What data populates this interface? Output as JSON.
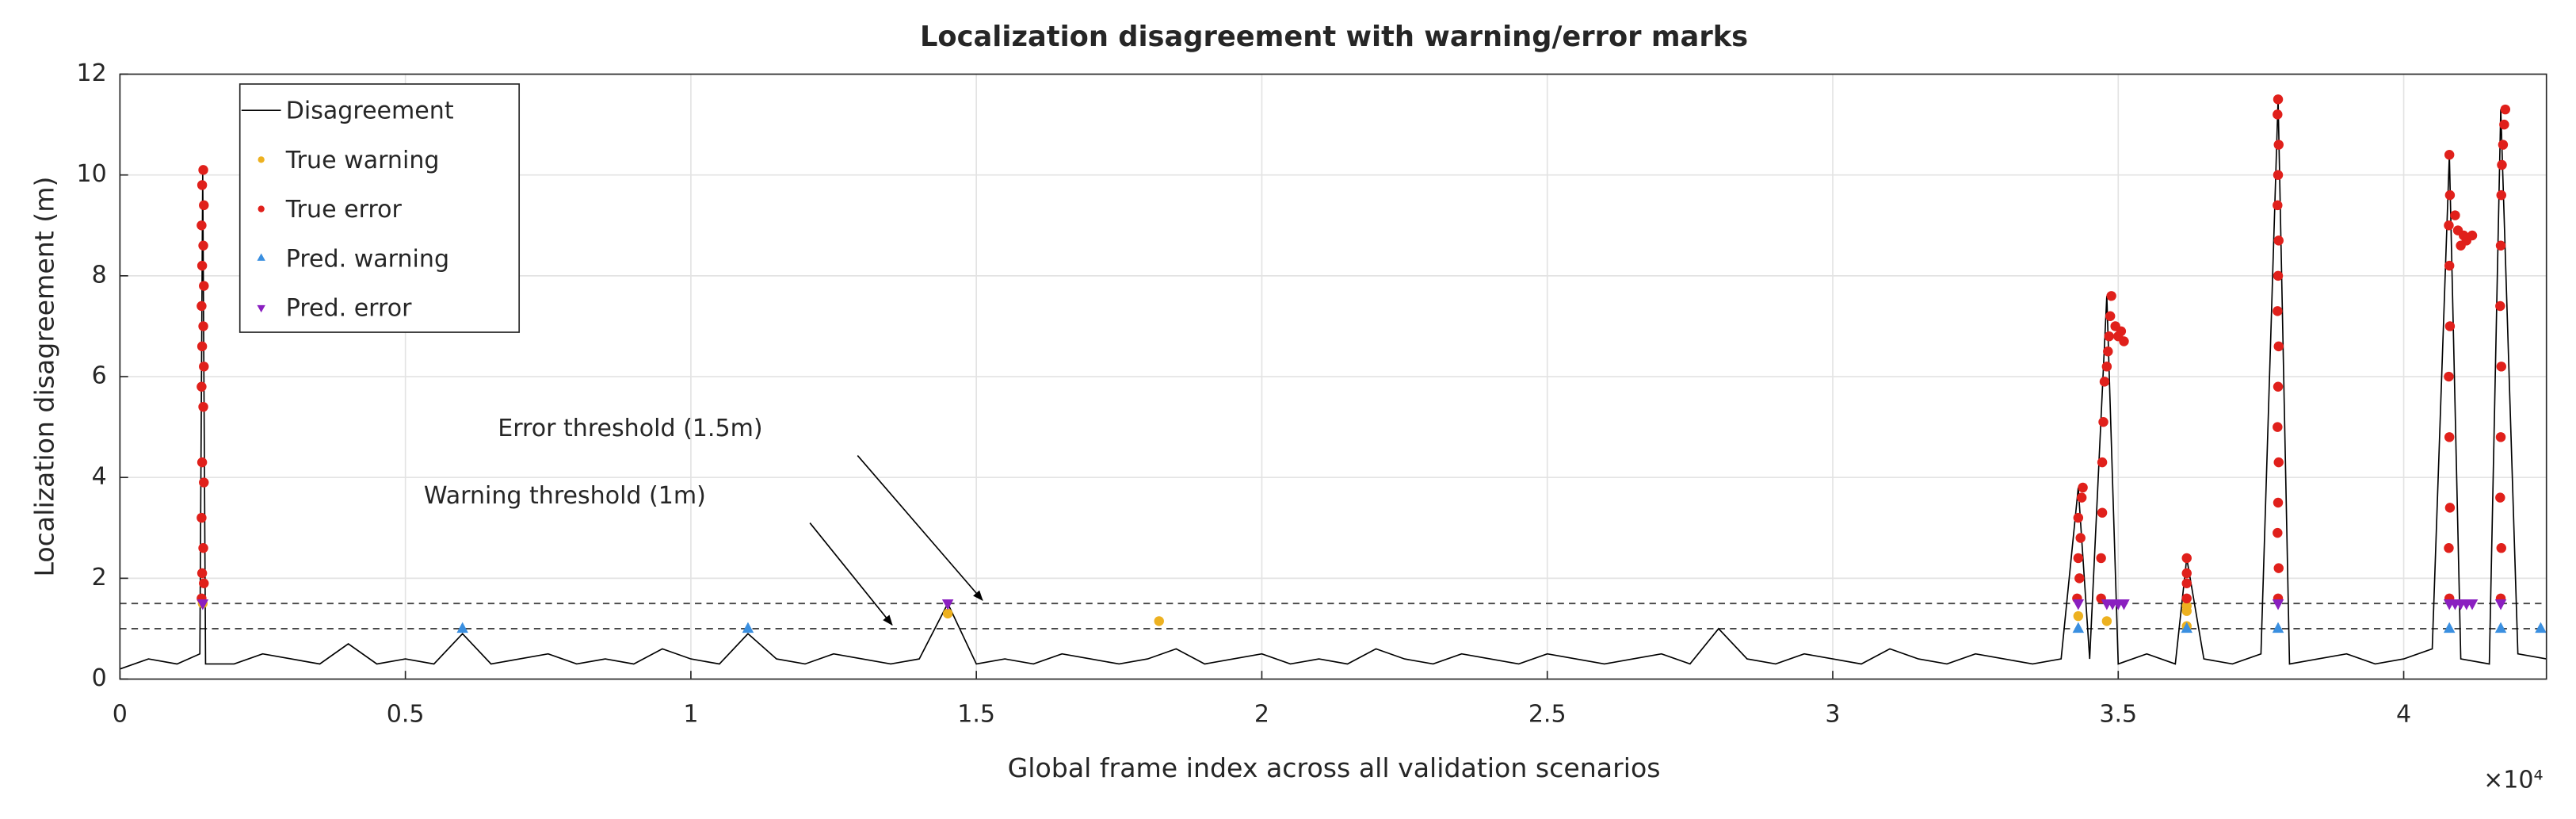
{
  "chart_data": {
    "type": "line",
    "title": "Localization disagreement with warning/error marks",
    "x_label": "Global frame index across all validation scenarios",
    "y_label": "Localization disagreement (m)",
    "x_exponent": "×10⁴",
    "xlim": [
      0,
      42500
    ],
    "ylim": [
      0,
      12
    ],
    "xticks": [
      0,
      {
        "value": 5000,
        "label": "0.5"
      },
      {
        "value": 10000,
        "label": "1"
      },
      {
        "value": 15000,
        "label": "1.5"
      },
      {
        "value": 20000,
        "label": "2"
      },
      {
        "value": 25000,
        "label": "2.5"
      },
      {
        "value": 30000,
        "label": "3"
      },
      {
        "value": 35000,
        "label": "3.5"
      },
      {
        "value": 40000,
        "label": "4"
      }
    ],
    "yticks": [
      0,
      2,
      4,
      6,
      8,
      10,
      12
    ],
    "grid": true,
    "legend": "northwest",
    "thresholds": [
      1,
      1.5
    ],
    "annotations": [
      "Error threshold (1.5m)",
      "Warning threshold (1m)"
    ],
    "series": [
      {
        "name": "Disagreement",
        "color": "#000000",
        "marker": "line",
        "x": [
          0,
          500,
          1000,
          1400,
          1450,
          1500,
          2000,
          2500,
          3000,
          3500,
          4000,
          4500,
          5000,
          5500,
          6000,
          6500,
          7000,
          7500,
          8000,
          8500,
          9000,
          9500,
          10000,
          10500,
          11000,
          11500,
          12000,
          12500,
          13000,
          13500,
          14000,
          14500,
          15000,
          15500,
          16000,
          16500,
          17000,
          17500,
          18000,
          18500,
          19000,
          19500,
          20000,
          20500,
          21000,
          21500,
          22000,
          22500,
          23000,
          23500,
          24000,
          24500,
          25000,
          25500,
          26000,
          26500,
          27000,
          27500,
          28000,
          28500,
          29000,
          29500,
          30000,
          30500,
          31000,
          31500,
          32000,
          32500,
          33000,
          33500,
          34000,
          34300,
          34500,
          34800,
          35000,
          35500,
          36000,
          36200,
          36500,
          37000,
          37500,
          37800,
          38000,
          38500,
          39000,
          39500,
          40000,
          40500,
          40800,
          41000,
          41500,
          41700,
          42000,
          42500
        ],
        "values": [
          0.2,
          0.4,
          0.3,
          0.5,
          10.1,
          0.3,
          0.3,
          0.5,
          0.4,
          0.3,
          0.7,
          0.3,
          0.4,
          0.3,
          0.9,
          0.3,
          0.4,
          0.5,
          0.3,
          0.4,
          0.3,
          0.6,
          0.4,
          0.3,
          0.9,
          0.4,
          0.3,
          0.5,
          0.4,
          0.3,
          0.4,
          1.5,
          0.3,
          0.4,
          0.3,
          0.5,
          0.4,
          0.3,
          0.4,
          0.6,
          0.3,
          0.4,
          0.5,
          0.3,
          0.4,
          0.3,
          0.6,
          0.4,
          0.3,
          0.5,
          0.4,
          0.3,
          0.5,
          0.4,
          0.3,
          0.4,
          0.5,
          0.3,
          1.0,
          0.4,
          0.3,
          0.5,
          0.4,
          0.3,
          0.6,
          0.4,
          0.3,
          0.5,
          0.4,
          0.3,
          0.4,
          3.8,
          0.4,
          7.6,
          0.3,
          0.5,
          0.3,
          2.4,
          0.4,
          0.3,
          0.5,
          11.5,
          0.3,
          0.4,
          0.5,
          0.3,
          0.4,
          0.6,
          10.4,
          0.4,
          0.3,
          11.3,
          0.5,
          0.4
        ]
      },
      {
        "name": "True warning",
        "color": "#EDB120",
        "marker": "dot",
        "x": [
          1450,
          14500,
          18200,
          34300,
          34800,
          36200,
          36200,
          36200
        ],
        "values": [
          1.5,
          1.3,
          1.15,
          1.25,
          1.15,
          1.05,
          1.35,
          1.45
        ]
      },
      {
        "name": "True error",
        "color": "#E0201B",
        "marker": "dot",
        "x": [
          1430,
          1470,
          1440,
          1460,
          1430,
          1470,
          1440,
          1460,
          1430,
          1470,
          1440,
          1460,
          1430,
          1470,
          1440,
          1460,
          1430,
          1470,
          1440,
          1460,
          34280,
          34320,
          34300,
          34340,
          34300,
          34360,
          34380,
          34700,
          34700,
          34720,
          34720,
          34740,
          34760,
          34800,
          34820,
          34840,
          34860,
          34880,
          34950,
          35000,
          35050,
          35100,
          36200,
          36200,
          36200,
          36200,
          37800,
          37810,
          37790,
          37800,
          37810,
          37790,
          37800,
          37810,
          37790,
          37800,
          37810,
          37790,
          37800,
          37810,
          37790,
          37800,
          40800,
          40790,
          40810,
          40800,
          40790,
          40810,
          40800,
          40790,
          40810,
          40800,
          40900,
          40950,
          41000,
          41050,
          41100,
          41200,
          41700,
          41710,
          41690,
          41700,
          41710,
          41690,
          41700,
          41710,
          41720,
          41740,
          41760,
          41780
        ],
        "values": [
          1.6,
          1.9,
          2.1,
          2.6,
          3.2,
          3.9,
          4.3,
          5.4,
          5.8,
          6.2,
          6.6,
          7.0,
          7.4,
          7.8,
          8.2,
          8.6,
          9.0,
          9.4,
          9.8,
          10.1,
          1.6,
          2.0,
          2.4,
          2.8,
          3.2,
          3.6,
          3.8,
          1.6,
          2.4,
          3.3,
          4.3,
          5.1,
          5.9,
          6.2,
          6.5,
          6.8,
          7.2,
          7.6,
          7.0,
          6.8,
          6.9,
          6.7,
          1.6,
          1.9,
          2.1,
          2.4,
          1.6,
          2.2,
          2.9,
          3.5,
          4.3,
          5.0,
          5.8,
          6.6,
          7.3,
          8.0,
          8.7,
          9.4,
          10.0,
          10.6,
          11.2,
          11.5,
          1.6,
          2.6,
          3.4,
          4.8,
          6.0,
          7.0,
          8.2,
          9.0,
          9.6,
          10.4,
          9.2,
          8.9,
          8.6,
          8.8,
          8.7,
          8.8,
          1.6,
          2.6,
          3.6,
          4.8,
          6.2,
          7.4,
          8.6,
          9.6,
          10.2,
          10.6,
          11.0,
          11.3
        ]
      },
      {
        "name": "Pred. warning",
        "color": "#3A8FE0",
        "marker": "up",
        "x": [
          6000,
          11000,
          34300,
          36200,
          37800,
          40800,
          41700,
          42400
        ],
        "values": [
          1,
          1,
          1,
          1,
          1,
          1,
          1,
          1
        ]
      },
      {
        "name": "Pred. error",
        "color": "#8A1FC0",
        "marker": "down",
        "x": [
          1450,
          14500,
          34300,
          34800,
          34900,
          35000,
          35100,
          37800,
          40800,
          40900,
          41000,
          41100,
          41200,
          41700
        ],
        "values": [
          1.5,
          1.5,
          1.5,
          1.5,
          1.5,
          1.5,
          1.5,
          1.5,
          1.5,
          1.5,
          1.5,
          1.5,
          1.5,
          1.5
        ]
      }
    ]
  }
}
